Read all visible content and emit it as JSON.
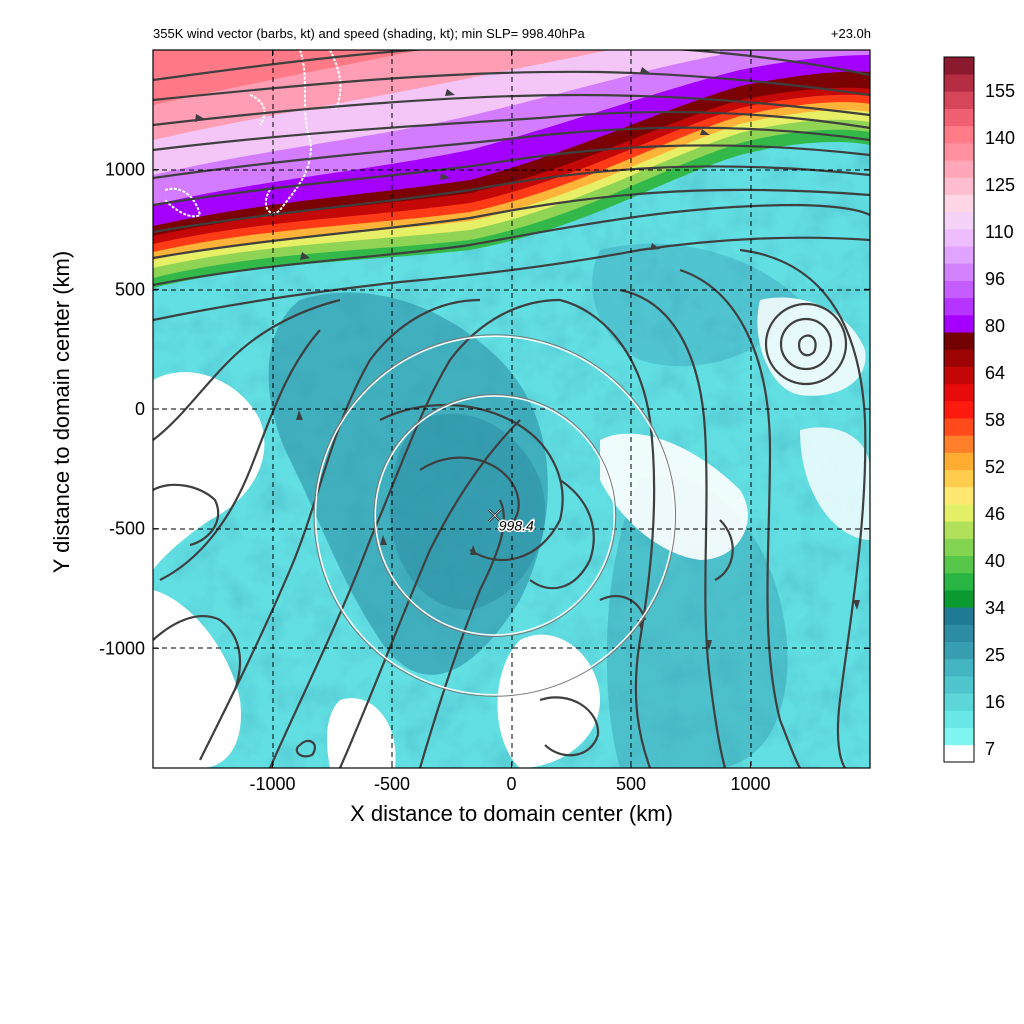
{
  "chart_data": {
    "type": "heatmap",
    "title": "355K wind vector (barbs, kt) and speed (shading, kt); min SLP= 998.40hPa",
    "time_label": "+23.0h",
    "xlabel": "X distance to domain center (km)",
    "ylabel": "Y distance to domain center (km)",
    "xlim": [
      -1500,
      1500
    ],
    "ylim": [
      -1500,
      1500
    ],
    "x_ticks": [
      -1000,
      -500,
      0,
      500,
      1000
    ],
    "y_ticks": [
      1000,
      500,
      0,
      -500,
      -1000
    ],
    "grid": true,
    "center_marker": {
      "x": -70,
      "y": -445,
      "label": "998.4"
    },
    "range_rings_km": [
      500,
      750
    ],
    "colorbar": {
      "unit": "kt",
      "tick_labels": [
        7,
        16,
        25,
        34,
        40,
        46,
        52,
        58,
        64,
        80,
        96,
        110,
        125,
        140,
        155
      ],
      "colors": [
        "#ffffff",
        "#7ff5f2",
        "#69e6e6",
        "#5dd6da",
        "#4fc6cd",
        "#43b5c0",
        "#389fb1",
        "#2c8ca2",
        "#1f7a93",
        "#0a9a30",
        "#29b544",
        "#56c74b",
        "#83d450",
        "#b1e05a",
        "#e3ef67",
        "#ffe872",
        "#ffcc4c",
        "#ffac33",
        "#ff7f2a",
        "#ff4a1c",
        "#ff1a10",
        "#e80b0b",
        "#c40707",
        "#9c0404",
        "#740101",
        "#a500ff",
        "#b733ff",
        "#c45cff",
        "#d382ff",
        "#e0a3ff",
        "#eebdfd",
        "#f5d2f8",
        "#ffd6e6",
        "#ffbdd0",
        "#ffa6b8",
        "#ff90a0",
        "#ff7b88",
        "#f06073",
        "#d6465a",
        "#b42d43",
        "#8c1a2e"
      ]
    }
  }
}
